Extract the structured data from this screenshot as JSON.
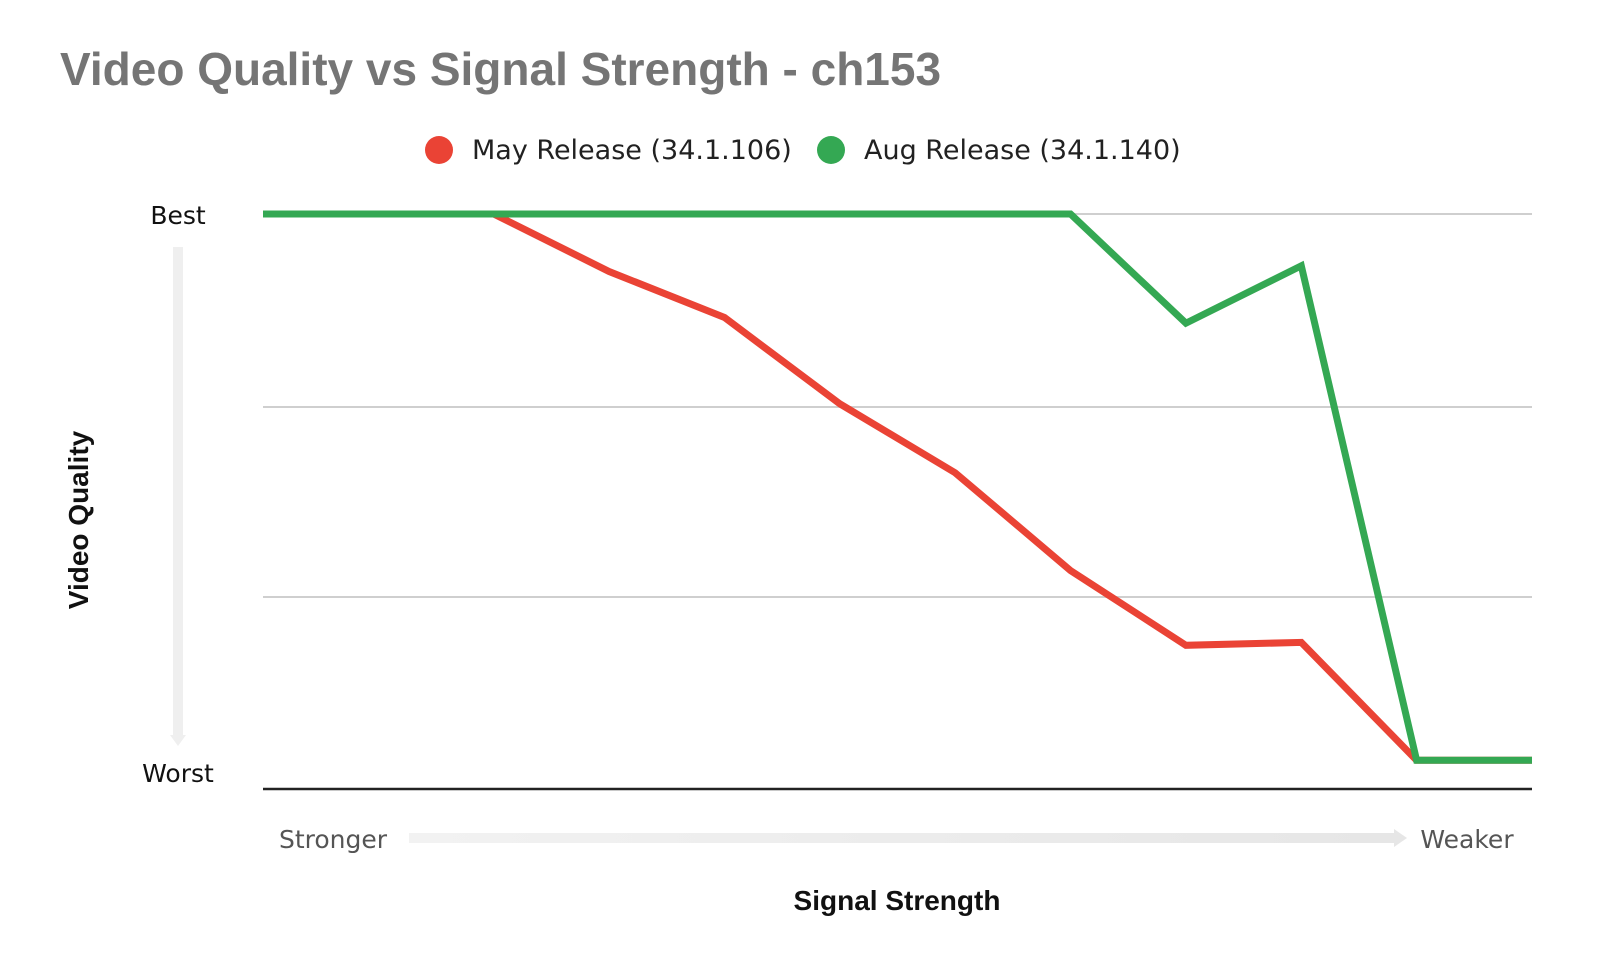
{
  "chart_data": {
    "type": "line",
    "title": "Video Quality vs Signal Strength - ch153",
    "xlabel": "Signal Strength",
    "ylabel": "Video Quality",
    "x_start_label": "Stronger",
    "x_end_label": "Weaker",
    "y_top_label": "Best",
    "y_bottom_label": "Worst",
    "legend_position": "top",
    "grid": true,
    "x": [
      0,
      1,
      2,
      3,
      4,
      5,
      6,
      7,
      8,
      9,
      10,
      11
    ],
    "xlim": [
      0,
      11
    ],
    "ylim": [
      0,
      100
    ],
    "series": [
      {
        "name": "May Release (34.1.106)",
        "color": "#ea4335",
        "values": [
          100,
          100,
          100,
          90,
          82,
          67,
          55,
          38,
          25,
          25.5,
          5,
          5
        ]
      },
      {
        "name": "Aug Release (34.1.140)",
        "color": "#34a853",
        "values": [
          100,
          100,
          100,
          100,
          100,
          100,
          100,
          100,
          81,
          91,
          5,
          5
        ]
      }
    ]
  }
}
